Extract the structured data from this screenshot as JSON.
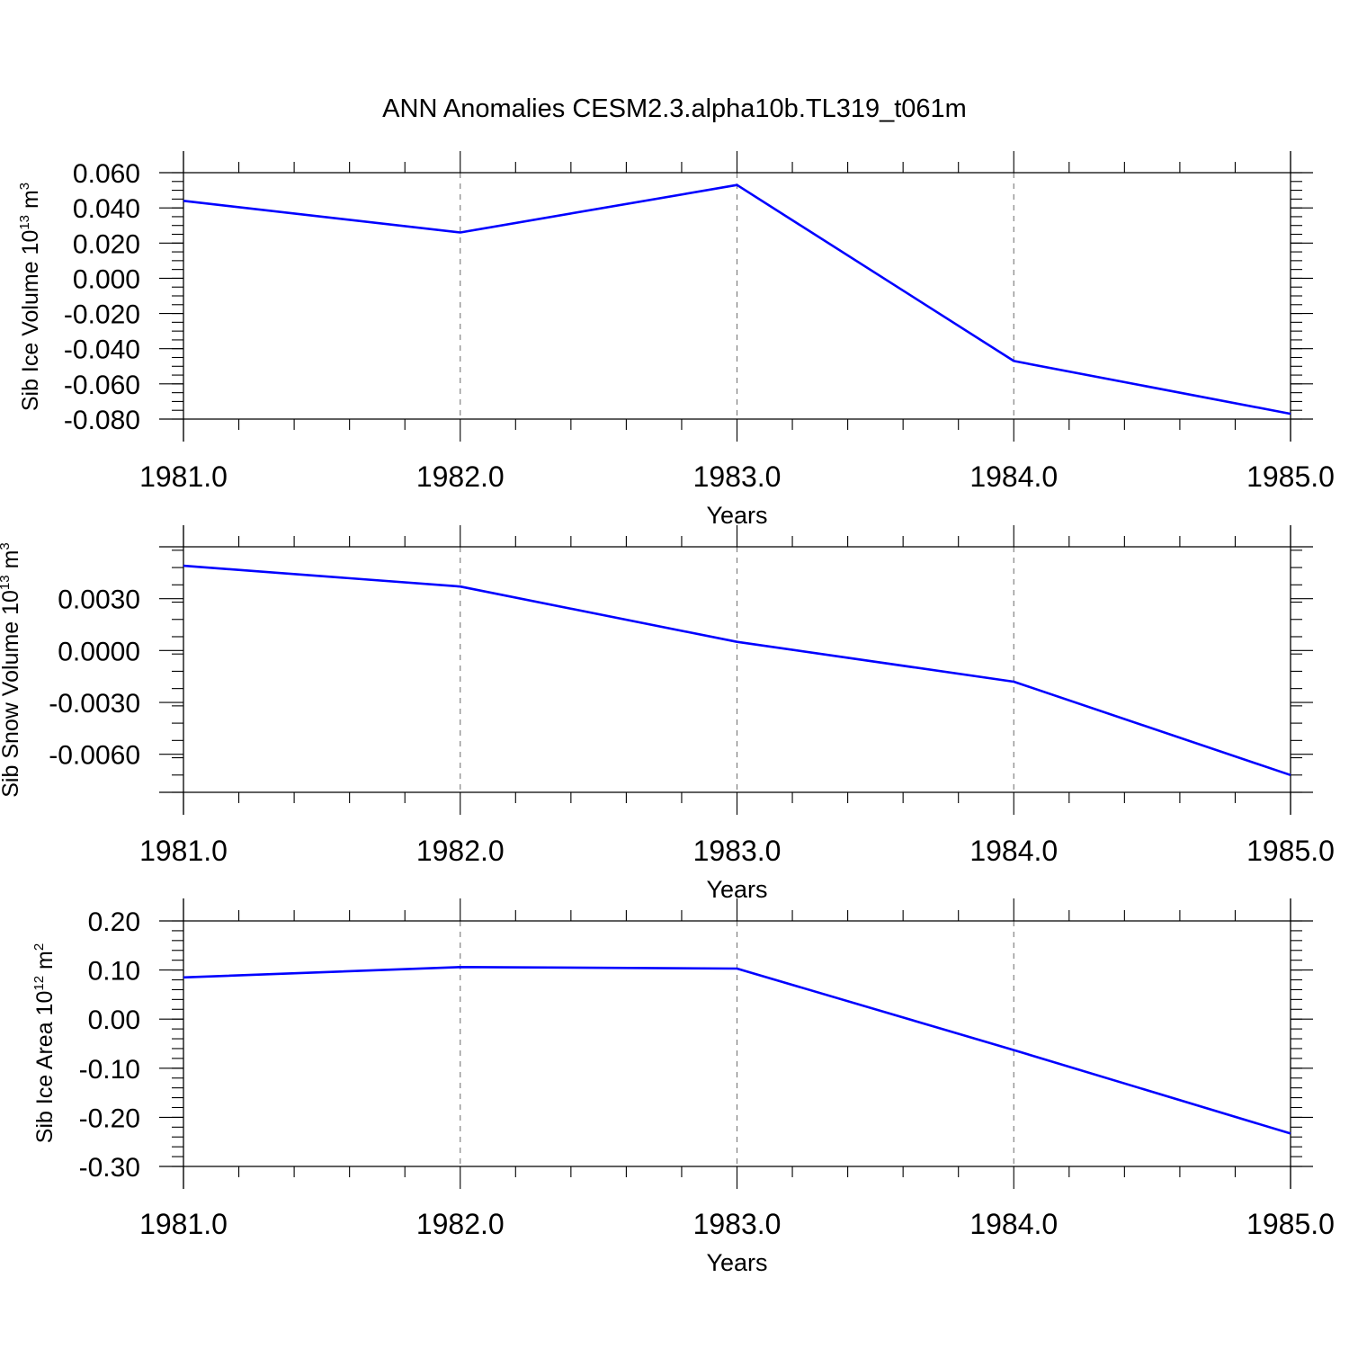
{
  "title": "ANN Anomalies CESM2.3.alpha10b.TL319_t061m",
  "chart_data": [
    {
      "type": "line",
      "xlabel": "Years",
      "ylabel": {
        "text": "Sib Ice Volume 10",
        "exp": "13",
        "mid": " m",
        "exp2": "3"
      },
      "x": [
        1981,
        1982,
        1983,
        1984,
        1985
      ],
      "xticks": [
        "1981.0",
        "1982.0",
        "1983.0",
        "1984.0",
        "1985.0"
      ],
      "ylim": [
        -0.08,
        0.06
      ],
      "yticks": [
        0.06,
        0.04,
        0.02,
        0.0,
        -0.02,
        -0.04,
        -0.06,
        -0.08
      ],
      "ytick_labels": [
        "0.060",
        "0.040",
        "0.020",
        "0.000",
        "-0.020",
        "-0.040",
        "-0.060",
        "-0.080"
      ],
      "minor_step": 0.005,
      "values": [
        0.044,
        0.026,
        0.053,
        -0.047,
        -0.077
      ],
      "color": "#0000ff",
      "grid": "vertical dashed at major x ticks"
    },
    {
      "type": "line",
      "xlabel": "Years",
      "ylabel": {
        "text": "Sib Snow Volume 10",
        "exp": "13",
        "mid": " m",
        "exp2": "3"
      },
      "x": [
        1981,
        1982,
        1983,
        1984,
        1985
      ],
      "xticks": [
        "1981.0",
        "1982.0",
        "1983.0",
        "1984.0",
        "1985.0"
      ],
      "ylim": [
        -0.0082,
        0.006
      ],
      "yticks": [
        0.003,
        0.0,
        -0.003,
        -0.006
      ],
      "ytick_labels": [
        "0.0030",
        "0.0000",
        "-0.0030",
        "-0.0060"
      ],
      "minor_step": 0.001,
      "values": [
        0.0049,
        0.0037,
        0.0005,
        -0.0018,
        -0.0072
      ],
      "color": "#0000ff",
      "grid": "vertical dashed at major x ticks"
    },
    {
      "type": "line",
      "xlabel": "Years",
      "ylabel": {
        "text": "Sib Ice Area 10",
        "exp": "12",
        "mid": " m",
        "exp2": "2"
      },
      "x": [
        1981,
        1982,
        1983,
        1984,
        1985
      ],
      "xticks": [
        "1981.0",
        "1982.0",
        "1983.0",
        "1984.0",
        "1985.0"
      ],
      "ylim": [
        -0.3,
        0.2
      ],
      "yticks": [
        0.2,
        0.1,
        0.0,
        -0.1,
        -0.2,
        -0.3
      ],
      "ytick_labels": [
        "0.20",
        "0.10",
        "0.00",
        "-0.10",
        "-0.20",
        "-0.30"
      ],
      "minor_step": 0.02,
      "values": [
        0.085,
        0.106,
        0.103,
        -0.063,
        -0.233
      ],
      "color": "#0000ff",
      "grid": "vertical dashed at major x ticks"
    }
  ]
}
